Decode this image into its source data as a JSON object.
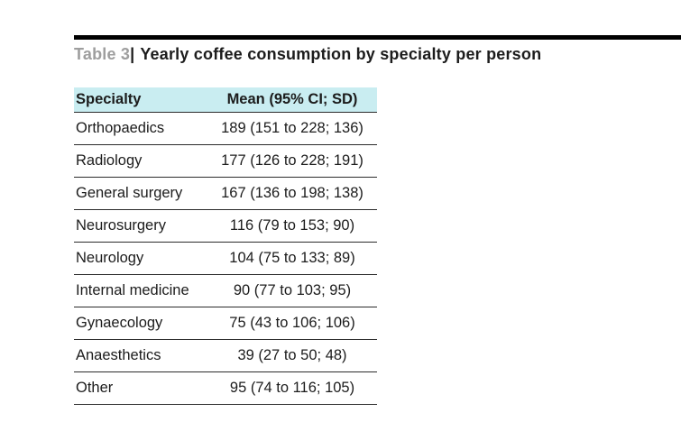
{
  "caption": {
    "label": "Table 3",
    "divider": "|",
    "title": "Yearly coffee consumption by specialty per person"
  },
  "table": {
    "columns": [
      "Specialty",
      "Mean (95% CI; SD)"
    ],
    "rows": [
      {
        "specialty": "Orthopaedics",
        "mean": "189 (151 to 228; 136)"
      },
      {
        "specialty": "Radiology",
        "mean": "177 (126 to 228; 191)"
      },
      {
        "specialty": "General surgery",
        "mean": "167 (136 to 198; 138)"
      },
      {
        "specialty": "Neurosurgery",
        "mean": "116 (79 to 153; 90)"
      },
      {
        "specialty": "Neurology",
        "mean": "104 (75 to 133; 89)"
      },
      {
        "specialty": "Internal medicine",
        "mean": "90 (77 to 103; 95)"
      },
      {
        "specialty": "Gynaecology",
        "mean": "75 (43 to 106; 106)"
      },
      {
        "specialty": "Anaesthetics",
        "mean": "39 (27 to 50; 48)"
      },
      {
        "specialty": "Other",
        "mean": "95 (74 to 116; 105)"
      }
    ]
  },
  "colors": {
    "header_bg": "#c9edf1",
    "label_gray": "#9e9e9e",
    "text": "#1c1c1c",
    "rule": "#000000",
    "row_line": "#2b2b2b"
  }
}
